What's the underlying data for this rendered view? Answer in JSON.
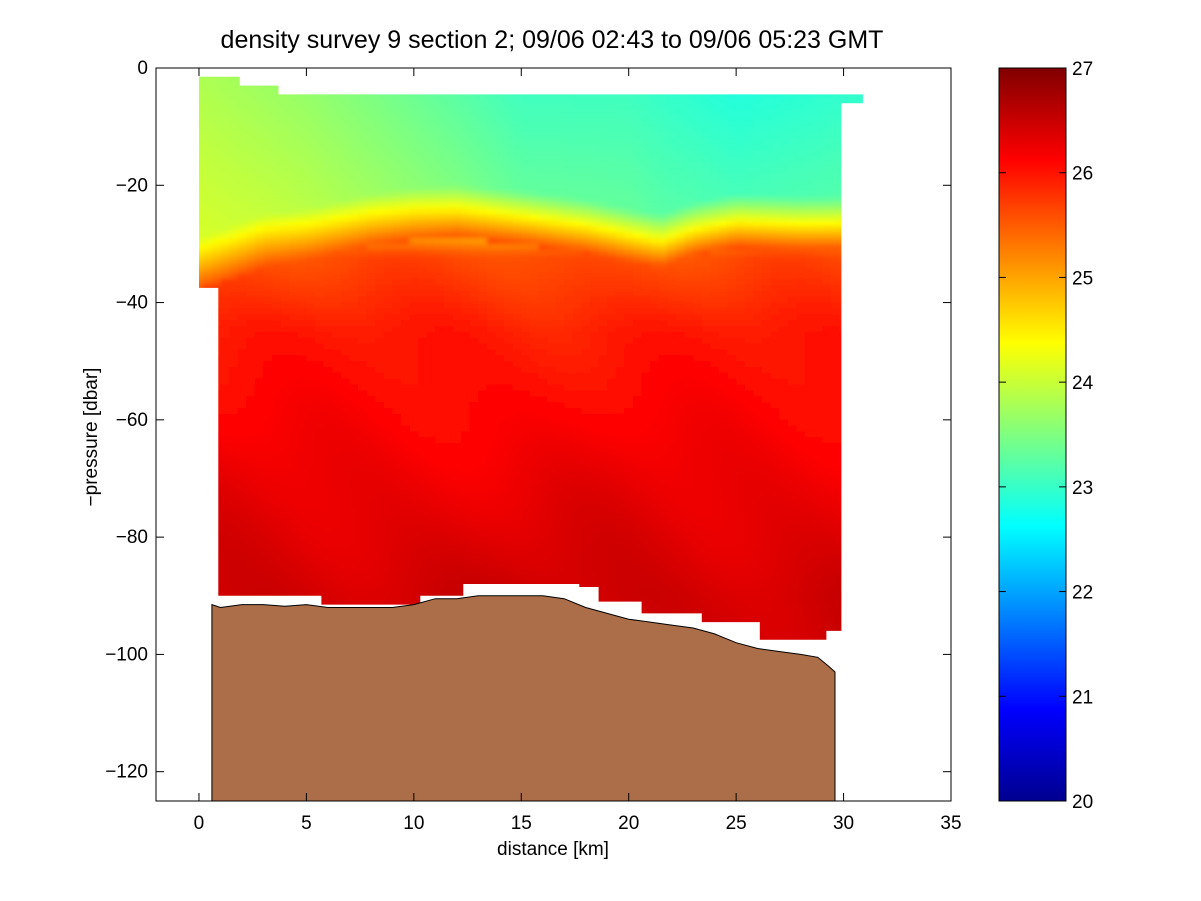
{
  "chart_data": {
    "type": "heatmap",
    "title": "density survey 9 section 2; 09/06 02:43 to 09/06 05:23 GMT",
    "xlabel": "distance [km]",
    "ylabel": "−pressure [dbar]",
    "xlim": [
      -2,
      35
    ],
    "ylim": [
      -125,
      0
    ],
    "xticks": [
      0,
      5,
      10,
      15,
      20,
      25,
      30,
      35
    ],
    "xtick_labels": [
      "0",
      "5",
      "10",
      "15",
      "20",
      "25",
      "30",
      "35"
    ],
    "yticks": [
      0,
      -20,
      -40,
      -60,
      -80,
      -100,
      -120
    ],
    "ytick_labels": [
      "0",
      "−20",
      "−40",
      "−60",
      "−80",
      "−100",
      "−120"
    ],
    "grid": false,
    "colorbar": {
      "range": [
        20,
        27
      ],
      "colormap": "jet",
      "ticks": [
        20,
        21,
        22,
        23,
        24,
        25,
        26,
        27
      ],
      "tick_labels": [
        "20",
        "21",
        "22",
        "23",
        "24",
        "25",
        "26",
        "27"
      ]
    },
    "colormap_stops": [
      "#00008f",
      "#0000ff",
      "#00ffff",
      "#ffff00",
      "#ff0000",
      "#800000"
    ],
    "data_outline": {
      "x": [
        0,
        1.9,
        1.9,
        3.7,
        3.7,
        30.9,
        30.9,
        29.9,
        29.9,
        29.2,
        29.2,
        26.1,
        26.1,
        23.4,
        23.4,
        20.6,
        20.6,
        18.6,
        18.6,
        17.7,
        17.7,
        12.3,
        12.3,
        10.3,
        10.3,
        5.7,
        5.7,
        0.9,
        0.9,
        0,
        0
      ],
      "y": [
        -1.5,
        -1.5,
        -3,
        -3,
        -4.5,
        -4.5,
        -6,
        -6,
        -96,
        -96,
        -97.5,
        -97.5,
        -94.5,
        -94.5,
        -93,
        -93,
        -91,
        -91,
        -88.5,
        -88.5,
        -88,
        -88,
        -90,
        -90,
        -91.5,
        -91.5,
        -90,
        -90,
        -37.5,
        -37.5,
        -1.5
      ]
    },
    "pycnocline": {
      "x": [
        0,
        1.5,
        3,
        5,
        8,
        10,
        12,
        15,
        18,
        20,
        21.5,
        23,
        25,
        28,
        30
      ],
      "y": [
        -33,
        -31,
        -29,
        -28,
        -25.5,
        -24.5,
        -24,
        -25,
        -26.5,
        -28,
        -29,
        -27,
        -25.5,
        -26,
        -26
      ]
    },
    "density_levels": [
      {
        "depth": -5,
        "value": 23.1
      },
      {
        "depth": -20,
        "value": 23.3
      },
      {
        "depth": -32,
        "value": 25.6
      },
      {
        "depth": -45,
        "value": 25.95
      },
      {
        "depth": -70,
        "value": 26.25
      },
      {
        "depth": -90,
        "value": 26.45
      }
    ],
    "surface_density": {
      "x": [
        0,
        5,
        10,
        15,
        20,
        25,
        30
      ],
      "values": [
        23.8,
        23.6,
        23.3,
        23.0,
        23.0,
        22.8,
        22.9
      ]
    },
    "seafloor": {
      "color": "#ab6e49",
      "x": [
        0.6,
        1.0,
        2.0,
        3.0,
        4.0,
        5.0,
        6.0,
        7.0,
        8.0,
        9.0,
        10.0,
        11.0,
        12.0,
        13.0,
        14.0,
        15.0,
        16.0,
        17.0,
        18.0,
        19.0,
        20.0,
        21.0,
        22.0,
        23.0,
        24.0,
        25.0,
        26.0,
        27.0,
        28.0,
        28.8,
        29.3,
        29.6,
        29.6,
        0.6
      ],
      "y": [
        -91.5,
        -92,
        -91.5,
        -91.5,
        -91.8,
        -91.5,
        -92,
        -92,
        -92,
        -92,
        -91.5,
        -90.5,
        -90.5,
        -90,
        -90,
        -90,
        -90,
        -90.5,
        -92,
        -93,
        -94,
        -94.5,
        -95,
        -95.5,
        -96.5,
        -98,
        -99,
        -99.5,
        -100,
        -100.5,
        -102,
        -103,
        -125,
        -125
      ]
    }
  }
}
